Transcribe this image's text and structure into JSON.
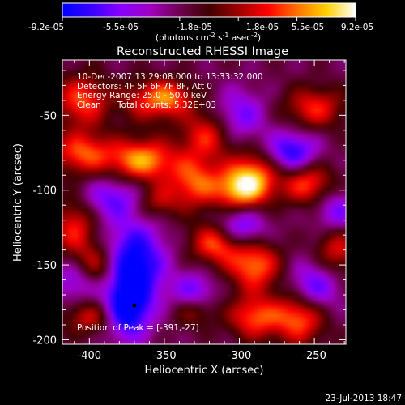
{
  "chart_data": {
    "type": "heatmap",
    "title": "Reconstructed RHESSI Image",
    "xlabel": "Heliocentric X (arcsec)",
    "ylabel": "Heliocentric Y (arcsec)",
    "xlim": [
      -418,
      -229
    ],
    "ylim": [
      -203,
      -13
    ],
    "x_ticks": [
      -400,
      -350,
      -300,
      -250
    ],
    "y_ticks": [
      -50,
      -100,
      -150,
      -200
    ],
    "colorbar": {
      "tick_values": [
        -9.2e-05,
        -5.5e-05,
        -1.8e-05,
        1.8e-05,
        5.5e-05,
        9.2e-05
      ],
      "tick_labels": [
        "-9.2e-05",
        "-5.5e-05",
        "-1.8e-05",
        "1.8e-05",
        "5.5e-05",
        "9.2e-05"
      ],
      "label_main": "(photons cm",
      "label_exp1": "-2",
      "label_mid": " s",
      "label_exp2": "-1",
      "label_end": " asec",
      "label_exp3": "-2",
      "label_close": ")",
      "colors": [
        "#0000ff",
        "#3a00ff",
        "#8a00ff",
        "#a000c0",
        "#700050",
        "#400000",
        "#a00000",
        "#ff0000",
        "#ff7000",
        "#ffd000",
        "#ffffff"
      ]
    },
    "annotations": {
      "time_range": "10-Dec-2007 13:29:08.000 to 13:33:32.000",
      "detectors": "Detectors: 4F 5F 6F 7F 8F, Att 0",
      "energy_range": "Energy Range: 25.0 - 50.0 keV",
      "method": "Clean",
      "total_counts": "Total counts: 5.32E+03",
      "peak_position": "Position of Peak = [-391,-27]"
    },
    "peak": {
      "x": -391,
      "y": -27
    },
    "marker": {
      "x": -370,
      "y": -177
    },
    "blobs": [
      {
        "x": -405,
        "y": -40,
        "v": 0.7,
        "sx": 12,
        "sy": 12
      },
      {
        "x": -360,
        "y": -40,
        "v": 0.55,
        "sx": 14,
        "sy": 10
      },
      {
        "x": -345,
        "y": -38,
        "v": 0.5,
        "sx": 10,
        "sy": 8
      },
      {
        "x": -322,
        "y": -63,
        "v": 0.6,
        "sx": 12,
        "sy": 12
      },
      {
        "x": -250,
        "y": -45,
        "v": 0.6,
        "sx": 14,
        "sy": 10
      },
      {
        "x": -405,
        "y": -75,
        "v": 0.7,
        "sx": 14,
        "sy": 10
      },
      {
        "x": -365,
        "y": -80,
        "v": 0.9,
        "sx": 16,
        "sy": 10
      },
      {
        "x": -330,
        "y": -95,
        "v": 0.7,
        "sx": 12,
        "sy": 12
      },
      {
        "x": -300,
        "y": -100,
        "v": 0.8,
        "sx": 12,
        "sy": 10
      },
      {
        "x": -290,
        "y": -90,
        "v": 0.7,
        "sx": 12,
        "sy": 12
      },
      {
        "x": -255,
        "y": -95,
        "v": 0.7,
        "sx": 12,
        "sy": 10
      },
      {
        "x": -410,
        "y": -125,
        "v": 0.6,
        "sx": 10,
        "sy": 14
      },
      {
        "x": -355,
        "y": -108,
        "v": 0.45,
        "sx": 10,
        "sy": 8
      },
      {
        "x": -315,
        "y": -135,
        "v": 0.8,
        "sx": 12,
        "sy": 10
      },
      {
        "x": -290,
        "y": -150,
        "v": 0.8,
        "sx": 12,
        "sy": 12
      },
      {
        "x": -235,
        "y": -140,
        "v": 0.55,
        "sx": 10,
        "sy": 12
      },
      {
        "x": -395,
        "y": -150,
        "v": 0.55,
        "sx": 10,
        "sy": 10
      },
      {
        "x": -330,
        "y": -180,
        "v": 0.55,
        "sx": 10,
        "sy": 8
      },
      {
        "x": -290,
        "y": -185,
        "v": 0.7,
        "sx": 12,
        "sy": 10
      },
      {
        "x": -260,
        "y": -185,
        "v": 0.8,
        "sx": 12,
        "sy": 12
      },
      {
        "x": -400,
        "y": -185,
        "v": 0.5,
        "sx": 12,
        "sy": 8
      },
      {
        "x": -370,
        "y": -150,
        "v": -0.9,
        "sx": 14,
        "sy": 20
      },
      {
        "x": -375,
        "y": -180,
        "v": -0.8,
        "sx": 10,
        "sy": 14
      },
      {
        "x": -330,
        "y": -170,
        "v": -0.6,
        "sx": 10,
        "sy": 10
      },
      {
        "x": -300,
        "y": -125,
        "v": -0.7,
        "sx": 12,
        "sy": 10
      },
      {
        "x": -265,
        "y": -75,
        "v": -0.75,
        "sx": 12,
        "sy": 10
      },
      {
        "x": -250,
        "y": -165,
        "v": -0.6,
        "sx": 12,
        "sy": 12
      },
      {
        "x": -385,
        "y": -105,
        "v": -0.5,
        "sx": 14,
        "sy": 10
      },
      {
        "x": -300,
        "y": -50,
        "v": -0.5,
        "sx": 12,
        "sy": 12
      },
      {
        "x": -235,
        "y": -115,
        "v": -0.5,
        "sx": 10,
        "sy": 10
      },
      {
        "x": -410,
        "y": -160,
        "v": -0.45,
        "sx": 10,
        "sy": 10
      }
    ]
  },
  "footer": {
    "date_stamp": "23-Jul-2013 18:47"
  }
}
